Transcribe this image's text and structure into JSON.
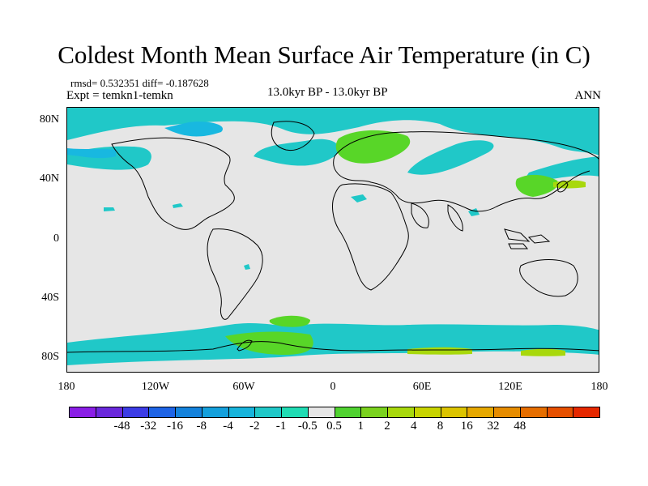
{
  "title": "Coldest Month Mean Surface Air Temperature (in C)",
  "stats_line": "rmsd= 0.532351 diff= -0.187628",
  "expt_line": "Expt = temkn1-temkn",
  "period": "13.0kyr BP - 13.0kyr BP",
  "season": "ANN",
  "colors": {
    "neutral": "#e6e6e6",
    "cool_1": "#20c8c8",
    "cool_2": "#18b8e0",
    "warm_1": "#58d628",
    "warm_2": "#a8d80c"
  },
  "map": {
    "lon_range": [
      -180,
      180
    ],
    "lat_range": [
      -90,
      90
    ],
    "lat_labels": [
      "80N",
      "40N",
      "0",
      "40S",
      "80S"
    ],
    "lon_labels": [
      "180",
      "120W",
      "60W",
      "0",
      "60E",
      "120E",
      "180"
    ]
  },
  "colorbar": {
    "colors": [
      "#8a1ee6",
      "#6a28dc",
      "#3c3ce6",
      "#1e64e6",
      "#1482dc",
      "#14a0dc",
      "#18b4dc",
      "#20c8c8",
      "#20dcb4",
      "#e6e6e6",
      "#50d230",
      "#7ad21e",
      "#a8d80c",
      "#c8d400",
      "#dcc400",
      "#e6a800",
      "#e68c00",
      "#e66e00",
      "#e65000",
      "#e62800"
    ],
    "labels": [
      "-48",
      "-32",
      "-16",
      "-8",
      "-4",
      "-2",
      "-1",
      "-0.5",
      "0.5",
      "1",
      "2",
      "4",
      "8",
      "16",
      "32",
      "48"
    ]
  }
}
